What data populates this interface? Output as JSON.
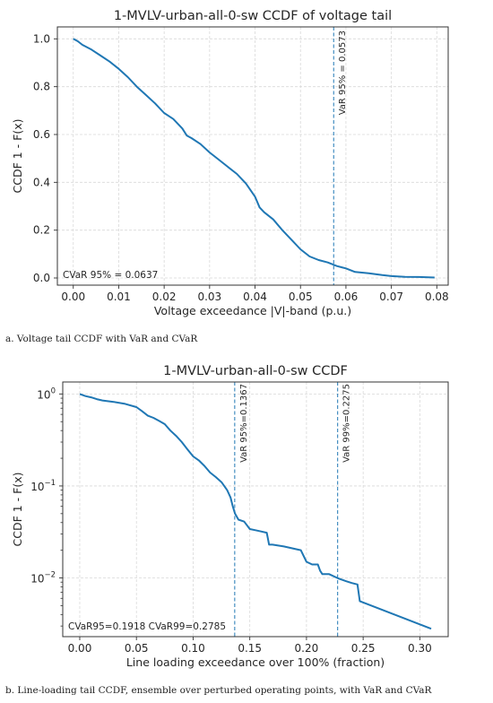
{
  "colors": {
    "line": "#1f77b4",
    "grid": "#d9d9d9",
    "axis": "#333333",
    "text": "#262626"
  },
  "captions": {
    "a": "a. Voltage tail CCDF with VaR and CVaR",
    "b": "b. Line-loading tail CCDF, ensemble over perturbed operating points, with VaR and CVaR"
  },
  "chart_data": [
    {
      "type": "line",
      "title": "1-MVLV-urban-all-0-sw  CCDF of voltage tail",
      "xlabel": "Voltage exceedance |V|-band (p.u.)",
      "ylabel": "CCDF 1 - F(x)",
      "xlim": [
        -0.0035,
        0.0825
      ],
      "ylim": [
        -0.03,
        1.05
      ],
      "yscale": "linear",
      "grid": true,
      "xticks": [
        0.0,
        0.01,
        0.02,
        0.03,
        0.04,
        0.05,
        0.06,
        0.07,
        0.08
      ],
      "xtick_labels": [
        "0.00",
        "0.01",
        "0.02",
        "0.03",
        "0.04",
        "0.05",
        "0.06",
        "0.07",
        "0.08"
      ],
      "yticks": [
        0.0,
        0.2,
        0.4,
        0.6,
        0.8,
        1.0
      ],
      "ytick_labels": [
        "0.0",
        "0.2",
        "0.4",
        "0.6",
        "0.8",
        "1.0"
      ],
      "series": [
        {
          "x": [
            0.0,
            0.001,
            0.002,
            0.004,
            0.006,
            0.008,
            0.01,
            0.012,
            0.014,
            0.016,
            0.018,
            0.02,
            0.022,
            0.024,
            0.025,
            0.026,
            0.028,
            0.03,
            0.032,
            0.034,
            0.036,
            0.038,
            0.04,
            0.041,
            0.042,
            0.044,
            0.046,
            0.048,
            0.05,
            0.052,
            0.054,
            0.056,
            0.058,
            0.06,
            0.062,
            0.065,
            0.068,
            0.07,
            0.073,
            0.076,
            0.0795
          ],
          "y": [
            1.0,
            0.99,
            0.975,
            0.955,
            0.93,
            0.905,
            0.875,
            0.84,
            0.8,
            0.765,
            0.73,
            0.69,
            0.665,
            0.625,
            0.595,
            0.585,
            0.56,
            0.525,
            0.495,
            0.465,
            0.435,
            0.395,
            0.34,
            0.295,
            0.275,
            0.245,
            0.2,
            0.16,
            0.12,
            0.09,
            0.075,
            0.065,
            0.05,
            0.04,
            0.025,
            0.02,
            0.012,
            0.008,
            0.005,
            0.004,
            0.002
          ]
        }
      ],
      "vlines": [
        {
          "x": 0.0573,
          "label": "VaR 95% = 0.0573"
        }
      ],
      "annotations": [
        {
          "text": "CVaR 95% = 0.0637",
          "position": "bottom-left"
        }
      ]
    },
    {
      "type": "line",
      "title": "1-MVLV-urban-all-0-sw  CCDF",
      "xlabel": "Line loading exceedance over 100% (fraction)",
      "ylabel": "CCDF 1 - F(x)",
      "xlim": [
        -0.015,
        0.325
      ],
      "ylim": [
        0.0023,
        1.35
      ],
      "yscale": "log",
      "grid": true,
      "xticks": [
        0.0,
        0.05,
        0.1,
        0.15,
        0.2,
        0.25,
        0.3
      ],
      "xtick_labels": [
        "0.00",
        "0.05",
        "0.10",
        "0.15",
        "0.20",
        "0.25",
        "0.30"
      ],
      "yticks": [
        0.01,
        0.1,
        1
      ],
      "ytick_labels": [
        [
          "10",
          "−2"
        ],
        [
          "10",
          "−1"
        ],
        [
          "10",
          "0"
        ]
      ],
      "series": [
        {
          "x": [
            0.0,
            0.005,
            0.01,
            0.015,
            0.02,
            0.03,
            0.04,
            0.05,
            0.055,
            0.06,
            0.065,
            0.07,
            0.075,
            0.08,
            0.085,
            0.09,
            0.095,
            0.1,
            0.105,
            0.11,
            0.115,
            0.12,
            0.125,
            0.13,
            0.133,
            0.135,
            0.137,
            0.14,
            0.145,
            0.15,
            0.155,
            0.16,
            0.165,
            0.167,
            0.17,
            0.18,
            0.195,
            0.2,
            0.205,
            0.21,
            0.212,
            0.214,
            0.22,
            0.228,
            0.235,
            0.24,
            0.245,
            0.247,
            0.31
          ],
          "y": [
            1.0,
            0.95,
            0.92,
            0.88,
            0.85,
            0.82,
            0.78,
            0.72,
            0.65,
            0.58,
            0.55,
            0.51,
            0.47,
            0.4,
            0.35,
            0.3,
            0.25,
            0.21,
            0.19,
            0.165,
            0.14,
            0.125,
            0.11,
            0.09,
            0.075,
            0.06,
            0.05,
            0.043,
            0.041,
            0.034,
            0.033,
            0.032,
            0.031,
            0.023,
            0.023,
            0.022,
            0.02,
            0.015,
            0.014,
            0.014,
            0.012,
            0.011,
            0.011,
            0.0099,
            0.0092,
            0.0088,
            0.0085,
            0.0056,
            0.0028
          ]
        }
      ],
      "vlines": [
        {
          "x": 0.1367,
          "label": "VaR 95%=0.1367"
        },
        {
          "x": 0.2275,
          "label": "VaR 99%=0.2275"
        }
      ],
      "annotations": [
        {
          "text": "CVaR95=0.1918  CVaR99=0.2785",
          "position": "bottom-left"
        }
      ]
    }
  ]
}
